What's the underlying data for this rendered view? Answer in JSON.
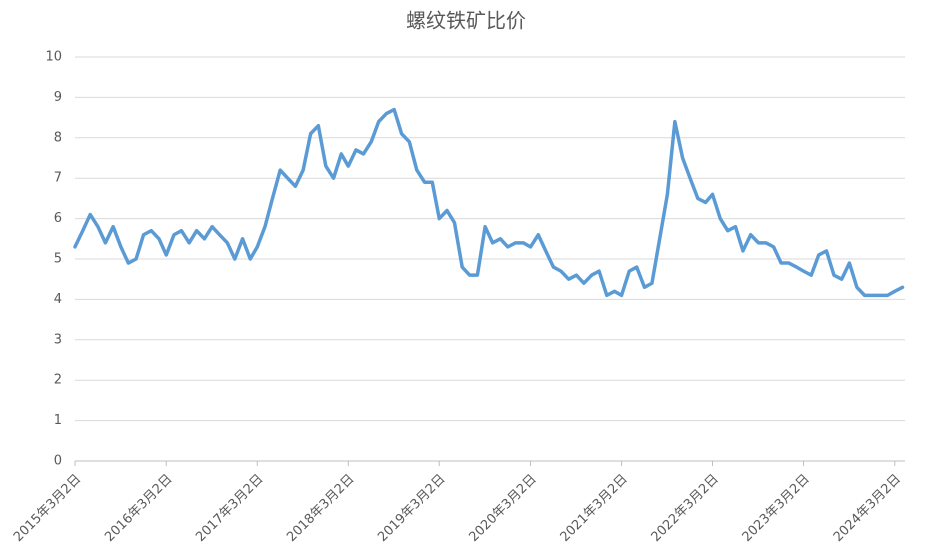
{
  "chart_data": {
    "type": "line",
    "title": "螺纹铁矿比价",
    "x": [
      "2015-03-02",
      "2015-04-02",
      "2015-05-02",
      "2015-06-02",
      "2015-07-02",
      "2015-08-02",
      "2015-09-02",
      "2015-10-02",
      "2015-11-02",
      "2015-12-02",
      "2016-01-02",
      "2016-02-02",
      "2016-03-02",
      "2016-04-02",
      "2016-05-02",
      "2016-06-02",
      "2016-07-02",
      "2016-08-02",
      "2016-09-02",
      "2016-10-02",
      "2016-11-02",
      "2016-12-02",
      "2017-01-02",
      "2017-02-02",
      "2017-03-02",
      "2017-04-02",
      "2017-05-02",
      "2017-06-02",
      "2017-07-02",
      "2017-08-02",
      "2017-09-02",
      "2017-10-02",
      "2017-11-02",
      "2017-12-02",
      "2018-01-02",
      "2018-02-02",
      "2018-03-02",
      "2018-04-02",
      "2018-05-02",
      "2018-06-02",
      "2018-07-02",
      "2018-08-02",
      "2018-09-02",
      "2018-10-02",
      "2018-11-02",
      "2018-12-02",
      "2019-01-02",
      "2019-02-02",
      "2019-03-02",
      "2019-04-02",
      "2019-05-02",
      "2019-06-02",
      "2019-07-02",
      "2019-08-02",
      "2019-09-02",
      "2019-10-02",
      "2019-11-02",
      "2019-12-02",
      "2020-01-02",
      "2020-02-02",
      "2020-03-02",
      "2020-04-02",
      "2020-05-02",
      "2020-06-02",
      "2020-07-02",
      "2020-08-02",
      "2020-09-02",
      "2020-10-02",
      "2020-11-02",
      "2020-12-02",
      "2021-01-02",
      "2021-02-02",
      "2021-03-02",
      "2021-04-02",
      "2021-05-02",
      "2021-06-02",
      "2021-07-02",
      "2021-08-02",
      "2021-09-02",
      "2021-10-02",
      "2021-11-02",
      "2021-12-02",
      "2022-01-02",
      "2022-02-02",
      "2022-03-02",
      "2022-04-02",
      "2022-05-02",
      "2022-06-02",
      "2022-07-02",
      "2022-08-02",
      "2022-09-02",
      "2022-10-02",
      "2022-11-02",
      "2022-12-02",
      "2023-01-02",
      "2023-02-02",
      "2023-03-02",
      "2023-04-02",
      "2023-05-02",
      "2023-06-02",
      "2023-07-02",
      "2023-08-02",
      "2023-09-02",
      "2023-10-02",
      "2023-11-02",
      "2023-12-02",
      "2024-01-02",
      "2024-02-02",
      "2024-03-02",
      "2024-04-02"
    ],
    "series": [
      {
        "color": "#5b9bd5",
        "values": [
          5.3,
          5.7,
          6.1,
          5.8,
          5.4,
          5.8,
          5.3,
          4.9,
          5.0,
          5.6,
          5.7,
          5.5,
          5.1,
          5.6,
          5.7,
          5.4,
          5.7,
          5.5,
          5.8,
          5.6,
          5.4,
          5.0,
          5.5,
          5.0,
          5.3,
          5.8,
          6.5,
          7.2,
          7.0,
          6.8,
          7.2,
          8.1,
          8.3,
          7.3,
          7.0,
          7.6,
          7.3,
          7.7,
          7.6,
          7.9,
          8.4,
          8.6,
          8.7,
          8.1,
          7.9,
          7.2,
          6.9,
          6.9,
          6.0,
          6.2,
          5.9,
          4.8,
          4.6,
          4.6,
          5.8,
          5.4,
          5.5,
          5.3,
          5.4,
          5.4,
          5.3,
          5.6,
          5.2,
          4.8,
          4.7,
          4.5,
          4.6,
          4.4,
          4.6,
          4.7,
          4.1,
          4.2,
          4.1,
          4.7,
          4.8,
          4.3,
          4.4,
          5.5,
          6.6,
          8.4,
          7.5,
          7.0,
          6.5,
          6.4,
          6.6,
          6.0,
          5.7,
          5.8,
          5.2,
          5.6,
          5.4,
          5.4,
          5.3,
          4.9,
          4.9,
          4.8,
          4.7,
          4.6,
          5.1,
          5.2,
          4.6,
          4.5,
          4.9,
          4.3,
          4.1,
          4.1,
          4.1,
          4.1,
          4.2,
          4.3
        ]
      }
    ],
    "xlim": [
      "2015-03-02",
      "2024-04-12"
    ],
    "xticks": [
      {
        "value": "2015-03-02",
        "label": "2015年3月2日"
      },
      {
        "value": "2016-03-02",
        "label": "2016年3月2日"
      },
      {
        "value": "2017-03-02",
        "label": "2017年3月2日"
      },
      {
        "value": "2018-03-02",
        "label": "2018年3月2日"
      },
      {
        "value": "2019-03-02",
        "label": "2019年3月2日"
      },
      {
        "value": "2020-03-02",
        "label": "2020年3月2日"
      },
      {
        "value": "2021-03-02",
        "label": "2021年3月2日"
      },
      {
        "value": "2022-03-02",
        "label": "2022年3月2日"
      },
      {
        "value": "2023-03-02",
        "label": "2023年3月2日"
      },
      {
        "value": "2024-03-02",
        "label": "2024年3月2日"
      }
    ],
    "ylim": [
      0,
      10
    ],
    "yticks": [
      0,
      1,
      2,
      3,
      4,
      5,
      6,
      7,
      8,
      9,
      10
    ],
    "grid": true
  }
}
